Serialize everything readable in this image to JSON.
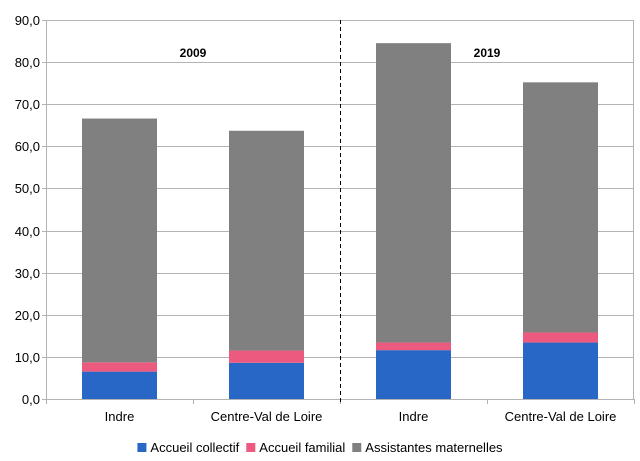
{
  "chart_data": {
    "type": "bar",
    "stacked": true,
    "categories": [
      "Indre",
      "Centre-Val de Loire",
      "Indre",
      "Centre-Val de Loire"
    ],
    "groups": [
      {
        "label": "2009",
        "categories": [
          "Indre",
          "Centre-Val de Loire"
        ]
      },
      {
        "label": "2019",
        "categories": [
          "Indre",
          "Centre-Val de Loire"
        ]
      }
    ],
    "series": [
      {
        "name": "Accueil collectif",
        "color": "#2867c6",
        "values": [
          6.5,
          8.6,
          11.6,
          13.4
        ]
      },
      {
        "name": "Accueil familial",
        "color": "#ec5a80",
        "values": [
          2.2,
          2.9,
          1.8,
          2.4
        ]
      },
      {
        "name": "Assistantes maternelles",
        "color": "#808080",
        "values": [
          57.9,
          52.2,
          71.1,
          59.4
        ]
      }
    ],
    "ylim": [
      0,
      90
    ],
    "yticks": [
      "0,0",
      "10,0",
      "20,0",
      "30,0",
      "40,0",
      "50,0",
      "60,0",
      "70,0",
      "80,0",
      "90,0"
    ],
    "grid": true,
    "legend": "bottom"
  }
}
